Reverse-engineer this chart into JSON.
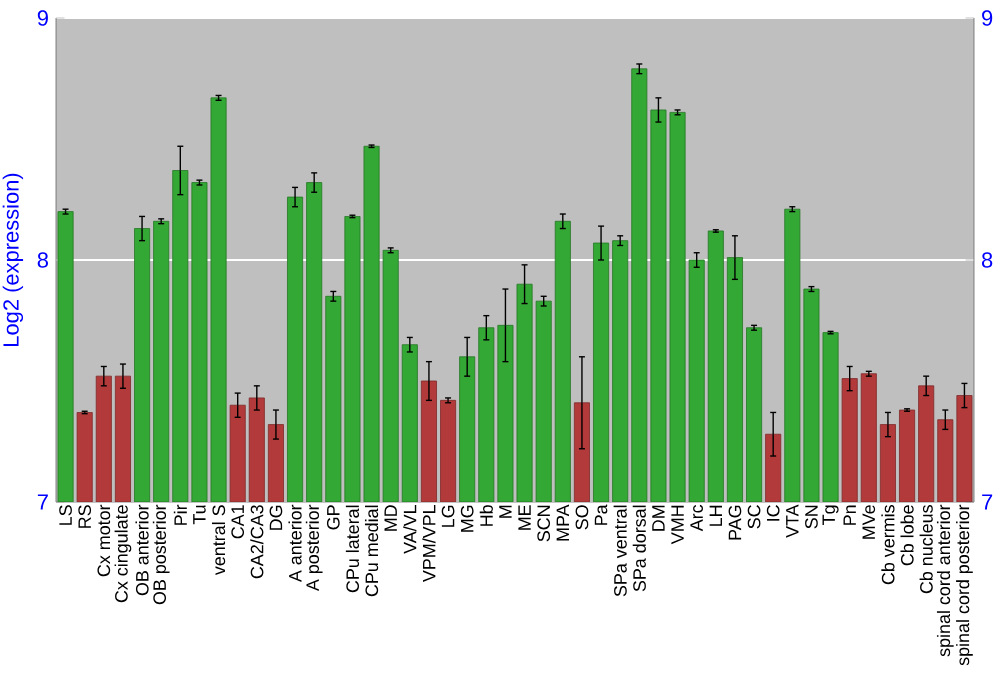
{
  "chart_data": {
    "type": "bar",
    "ylabel": "Log2 (expression)",
    "categories": [
      "LS",
      "RS",
      "Cx motor",
      "Cx cingulate",
      "OB anterior",
      "OB posterior",
      "Pir",
      "Tu",
      "ventral S",
      "CA1",
      "CA2/CA3",
      "DG",
      "A anterior",
      "A posterior",
      "GP",
      "CPu lateral",
      "CPu medial",
      "MD",
      "VA/VL",
      "VPM/VPL",
      "LG",
      "MG",
      "Hb",
      "M",
      "ME",
      "SCN",
      "MPA",
      "SO",
      "Pa",
      "SPa ventral",
      "SPa dorsal",
      "DM",
      "VMH",
      "Arc",
      "LH",
      "PAG",
      "SC",
      "IC",
      "VTA",
      "SN",
      "Tg",
      "Pn",
      "MVe",
      "Cb vermis",
      "Cb lobe",
      "Cb nucleus",
      "spinal cord anterior",
      "spinal cord posterior"
    ],
    "values": [
      8.2,
      7.37,
      7.52,
      7.52,
      8.13,
      8.16,
      8.37,
      8.32,
      8.67,
      7.4,
      7.43,
      7.32,
      8.26,
      8.32,
      7.85,
      8.18,
      8.47,
      8.04,
      7.65,
      7.5,
      7.42,
      7.6,
      7.72,
      7.73,
      7.9,
      7.83,
      8.16,
      7.41,
      8.07,
      8.08,
      8.79,
      8.62,
      8.61,
      8.0,
      8.12,
      8.01,
      7.72,
      7.28,
      8.21,
      7.88,
      7.7,
      7.51,
      7.53,
      7.32,
      7.38,
      7.48,
      7.34,
      7.44
    ],
    "errors": [
      0.01,
      0.005,
      0.04,
      0.05,
      0.05,
      0.01,
      0.1,
      0.01,
      0.01,
      0.05,
      0.05,
      0.06,
      0.04,
      0.04,
      0.02,
      0.005,
      0.005,
      0.01,
      0.03,
      0.08,
      0.01,
      0.08,
      0.05,
      0.15,
      0.08,
      0.02,
      0.03,
      0.19,
      0.07,
      0.02,
      0.02,
      0.05,
      0.01,
      0.03,
      0.005,
      0.09,
      0.01,
      0.09,
      0.01,
      0.01,
      0.005,
      0.05,
      0.01,
      0.05,
      0.005,
      0.04,
      0.04,
      0.05
    ],
    "colors": [
      "#34a834",
      "#b33a3a",
      "#b33a3a",
      "#b33a3a",
      "#34a834",
      "#34a834",
      "#34a834",
      "#34a834",
      "#34a834",
      "#b33a3a",
      "#b33a3a",
      "#b33a3a",
      "#34a834",
      "#34a834",
      "#34a834",
      "#34a834",
      "#34a834",
      "#34a834",
      "#34a834",
      "#b33a3a",
      "#b33a3a",
      "#34a834",
      "#34a834",
      "#34a834",
      "#34a834",
      "#34a834",
      "#34a834",
      "#b33a3a",
      "#34a834",
      "#34a834",
      "#34a834",
      "#34a834",
      "#34a834",
      "#34a834",
      "#34a834",
      "#34a834",
      "#34a834",
      "#b33a3a",
      "#34a834",
      "#34a834",
      "#34a834",
      "#b33a3a",
      "#b33a3a",
      "#b33a3a",
      "#b33a3a",
      "#b33a3a",
      "#b33a3a",
      "#b33a3a"
    ],
    "ylim": [
      7,
      9
    ],
    "yticks": [
      7,
      8,
      9
    ],
    "y2lim": [
      7,
      9
    ],
    "y2ticks": [
      7,
      8,
      9
    ],
    "grid": "y"
  }
}
